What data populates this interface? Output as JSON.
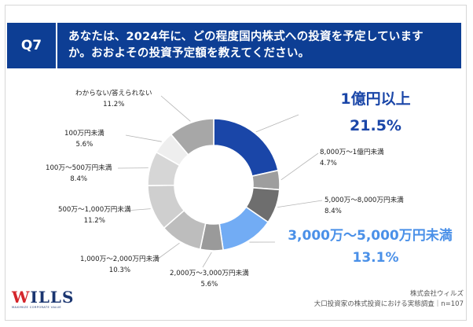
{
  "question": {
    "number": "Q7",
    "text_line1": "あなたは、2024年に、どの程度国内株式への投資を予定していますか。",
    "text_line2": "か。おおよその投資予定額を教えてください。"
  },
  "chart_data": {
    "type": "pie",
    "title": "",
    "categories": [
      "1億円以上",
      "8,000万～1億円未満",
      "5,000万～8,000万円未満",
      "3,000万～5,000万円未満",
      "2,000万～3,000万円未満",
      "1,000万～2,000万円未満",
      "500万～1,000万円未満",
      "100万～500万円未満",
      "100万円未満",
      "わからない/答えられない"
    ],
    "values": [
      21.5,
      4.7,
      8.4,
      13.1,
      5.6,
      10.3,
      11.2,
      8.4,
      5.6,
      11.2
    ],
    "value_labels": [
      "21.5%",
      "4.7%",
      "8.4%",
      "13.1%",
      "5.6%",
      "10.3%",
      "11.2%",
      "8.4%",
      "5.6%",
      "11.2%"
    ],
    "colors": [
      "#1a46a8",
      "#9e9e9e",
      "#6e6e6e",
      "#72acf4",
      "#9a9a9a",
      "#bdbdbd",
      "#cfcfcf",
      "#d6d6d6",
      "#eeeeee",
      "#a7a7a7"
    ],
    "donut": true
  },
  "highlights": {
    "top": {
      "label": "1億円以上",
      "value": "21.5%",
      "color": "#1a46a8"
    },
    "second": {
      "label": "3,000万～5,000万円未満",
      "value": "13.1%",
      "color": "#4a90e8"
    }
  },
  "footer": {
    "company": "株式会社ウィルズ",
    "survey": "大口投資家の株式投資における実態調査｜n=107",
    "logo_text": "ILLS",
    "logo_initial": "W",
    "logo_tagline": "MAXIMIZE CORPORATE VALUE"
  }
}
